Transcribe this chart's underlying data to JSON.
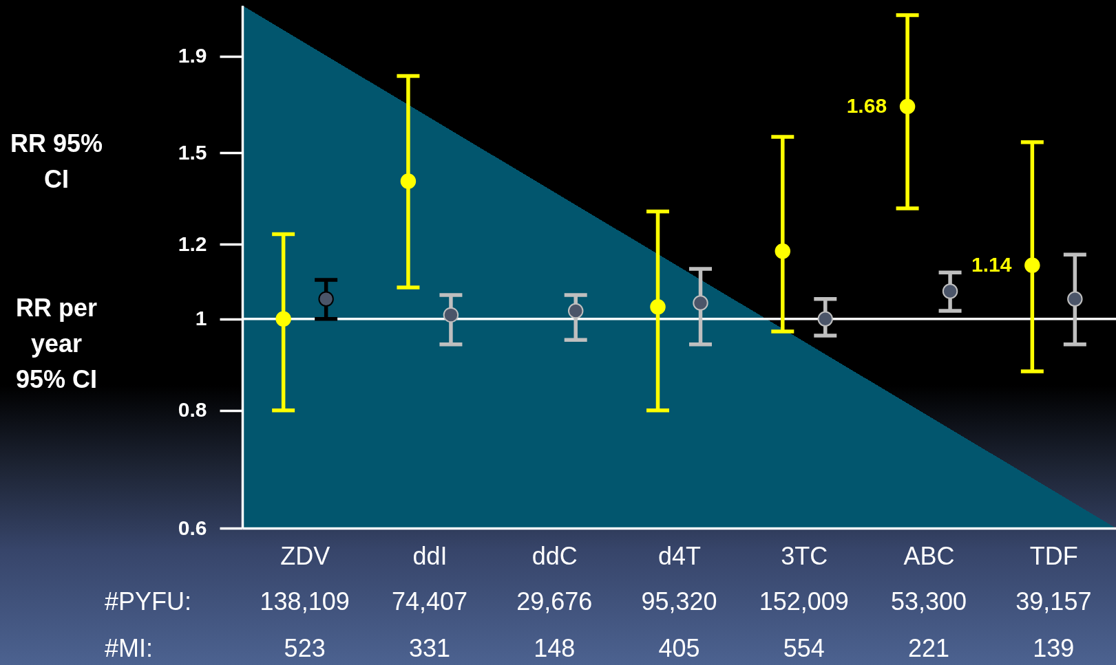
{
  "chart_data": {
    "type": "scatter",
    "log": true,
    "marker": "circle",
    "categories": [
      "ZDV",
      "ddI",
      "ddC",
      "d4T",
      "3TC",
      "ABC",
      "TDF"
    ],
    "ylim": [
      0.6,
      2.15
    ],
    "yticks": [
      0.6,
      0.8,
      1,
      1.2,
      1.5,
      1.9
    ],
    "series": [
      {
        "color": "#ffff00",
        "values": [
          1.0,
          1.4,
          null,
          1.03,
          1.18,
          1.68,
          1.14
        ],
        "errors": [
          [
            0.8,
            1.23
          ],
          [
            1.08,
            1.81
          ],
          null,
          [
            0.8,
            1.3
          ],
          [
            0.97,
            1.56
          ],
          [
            1.31,
            2.1
          ],
          [
            0.88,
            1.54
          ]
        ],
        "value_labels": [
          null,
          null,
          null,
          null,
          null,
          "1.68",
          "1.14"
        ]
      },
      {
        "color": "#4b5569",
        "colors": [
          "#000000",
          "#bfbfbf",
          "#bfbfbf",
          "#bfbfbf",
          "#bfbfbf",
          "#bfbfbf",
          "#bfbfbf"
        ],
        "values": [
          1.05,
          1.01,
          1.02,
          1.04,
          1.0,
          1.07,
          1.05
        ],
        "errors": [
          [
            1.0,
            1.1
          ],
          [
            0.94,
            1.06
          ],
          [
            0.95,
            1.06
          ],
          [
            0.94,
            1.13
          ],
          [
            0.96,
            1.05
          ],
          [
            1.02,
            1.12
          ],
          [
            0.94,
            1.17
          ]
        ]
      }
    ],
    "ref_lines": [
      {
        "axis": "y",
        "value": 1,
        "color": "#ffffff"
      }
    ],
    "annotations": [
      "RR 95% CI",
      "RR per year 95% CI",
      "#PYFU:",
      "138,109",
      "74,407",
      "29,676",
      "95,320",
      "152,009",
      "53,300",
      "39,157",
      "#MI:",
      "523",
      "331",
      "148",
      "405",
      "554",
      "221",
      "139"
    ]
  }
}
